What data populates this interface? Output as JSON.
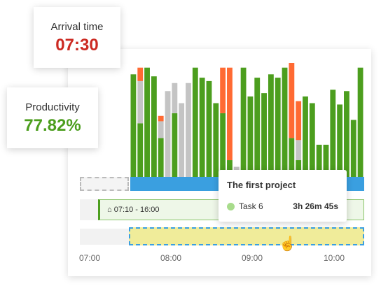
{
  "cards": [
    {
      "label": "Arrival time",
      "value": "07:30"
    },
    {
      "label": "Productivity",
      "value": "77.82%"
    }
  ],
  "schedule": "07:10 - 16:00",
  "tooltip": {
    "title": "The first project",
    "task": "Task 6",
    "duration": "3h 26m 45s"
  },
  "time_labels": [
    "07:00",
    "08:00",
    "09:00",
    "10:00"
  ],
  "chart_data": {
    "type": "bar",
    "stacked": true,
    "series": [
      {
        "color": "#4c9e1e",
        "values": [
          153,
          80,
          163,
          150,
          58,
          0,
          95,
          0,
          0,
          163,
          148,
          143,
          110,
          95,
          25,
          0,
          163,
          120,
          148,
          125,
          153,
          148,
          163,
          58,
          25,
          120,
          110,
          48,
          48,
          130,
          108,
          128,
          85,
          163
        ]
      },
      {
        "color": "#c4c4c4",
        "values": [
          0,
          63,
          0,
          0,
          25,
          128,
          45,
          110,
          140,
          0,
          0,
          0,
          0,
          0,
          0,
          15,
          0,
          0,
          0,
          0,
          0,
          0,
          0,
          0,
          30,
          0,
          0,
          0,
          0,
          0,
          0,
          0,
          0,
          0
        ]
      },
      {
        "color": "#ff6a33",
        "values": [
          0,
          20,
          0,
          0,
          8,
          0,
          0,
          0,
          0,
          0,
          0,
          0,
          0,
          68,
          138,
          0,
          0,
          0,
          0,
          0,
          0,
          0,
          0,
          112,
          58,
          0,
          0,
          0,
          0,
          0,
          0,
          0,
          0,
          0
        ]
      }
    ]
  }
}
